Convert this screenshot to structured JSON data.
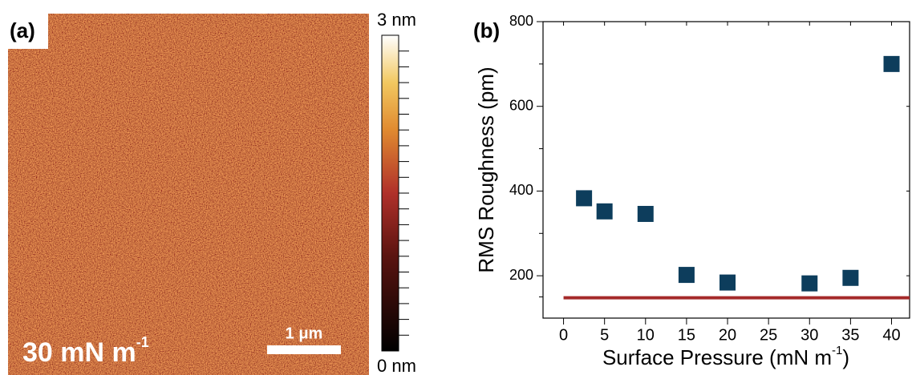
{
  "panel_a": {
    "label": "(a)",
    "colorbar_max": "3 nm",
    "colorbar_min": "0 nm",
    "annotation": {
      "text": "30 mN m",
      "superscript": "-1"
    },
    "scale_bar": "1 μm"
  },
  "chart_data": {
    "type": "scatter",
    "panel_label": "(b)",
    "xlabel": {
      "text": "Surface Pressure (mN m",
      "superscript": "-1",
      "suffix": ")"
    },
    "ylabel": "RMS Roughness (pm)",
    "x": [
      2.5,
      5,
      10,
      15,
      20,
      30,
      35,
      40
    ],
    "values": [
      383,
      352,
      346,
      202,
      184,
      182,
      195,
      700
    ],
    "color": "#0d3d5c",
    "reference_line": {
      "value": 148,
      "color": "#a52a2a"
    },
    "xlim": [
      -2.5,
      42.2
    ],
    "ylim": [
      100,
      800
    ],
    "xticks": [
      0,
      5,
      10,
      15,
      20,
      25,
      30,
      35,
      40
    ],
    "yticks": [
      200,
      400,
      600,
      800
    ]
  }
}
